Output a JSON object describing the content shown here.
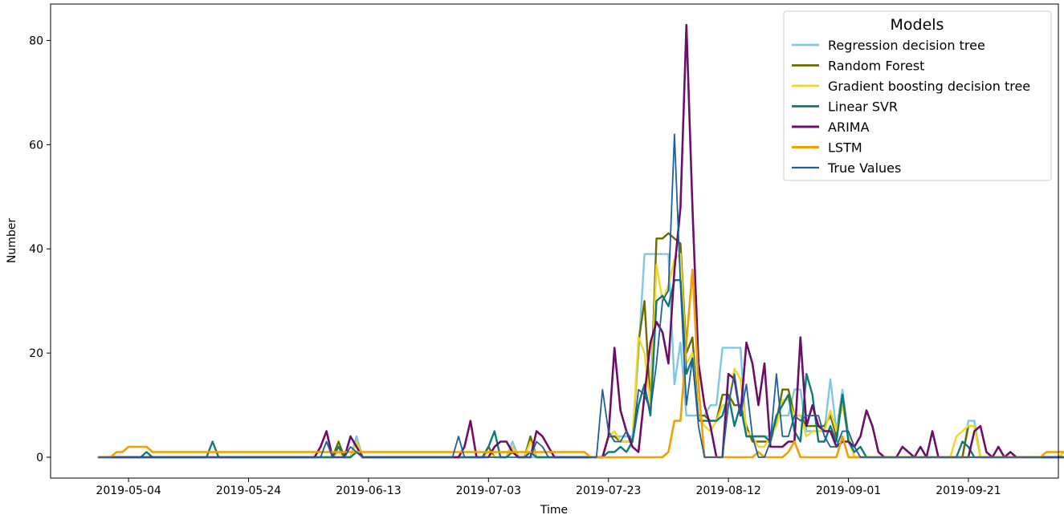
{
  "chart_data": {
    "type": "line",
    "xlabel": "Time",
    "ylabel": "Number",
    "x_start": "2019-04-29",
    "step_days": 1,
    "xlim": [
      "2019-04-21",
      "2019-10-06"
    ],
    "ylim": [
      -4,
      87
    ],
    "xticks": [
      "2019-05-04",
      "2019-05-24",
      "2019-06-13",
      "2019-07-03",
      "2019-07-23",
      "2019-08-12",
      "2019-09-01",
      "2019-09-21"
    ],
    "yticks": [
      0,
      20,
      40,
      60,
      80
    ],
    "grid": false,
    "legend": {
      "title": "Models",
      "position": "top-right"
    },
    "series": [
      {
        "name": "Regression decision tree",
        "color": "#7ec8e3",
        "width": 2.4,
        "values": [
          0,
          0,
          0,
          0,
          0,
          0,
          0,
          0,
          0,
          0,
          0,
          0,
          0,
          0,
          0,
          0,
          0,
          0,
          0,
          0,
          0,
          0,
          0,
          0,
          0,
          0,
          0,
          0,
          0,
          0,
          0,
          0,
          0,
          0,
          0,
          0,
          0,
          0,
          0,
          0,
          2,
          0,
          0,
          4,
          0,
          0,
          0,
          0,
          0,
          0,
          0,
          0,
          0,
          0,
          0,
          0,
          0,
          0,
          0,
          0,
          0,
          0,
          0,
          0,
          0,
          2,
          0,
          0,
          0,
          3,
          0,
          0,
          0,
          0,
          0,
          0,
          0,
          0,
          0,
          0,
          0,
          0,
          0,
          0,
          0,
          4,
          4,
          4,
          4,
          4,
          20,
          39,
          39,
          39,
          39,
          39,
          14,
          22,
          8,
          8,
          8,
          8,
          10,
          10,
          21,
          21,
          21,
          21,
          4,
          4,
          4,
          4,
          4,
          8,
          8,
          8,
          13,
          13,
          5,
          5,
          5,
          5,
          15,
          5,
          13,
          4,
          0,
          0,
          0,
          0,
          0,
          0,
          0,
          0,
          0,
          0,
          0,
          0,
          0,
          0,
          0,
          0,
          0,
          0,
          0,
          7,
          7,
          0,
          0,
          0,
          0,
          0,
          0,
          0,
          0,
          0,
          0,
          0,
          0,
          0,
          0,
          1,
          1
        ]
      },
      {
        "name": "Random Forest",
        "color": "#6b6b00",
        "width": 2.4,
        "values": [
          0,
          0,
          0,
          0,
          0,
          0,
          0,
          0,
          0,
          0,
          0,
          0,
          0,
          0,
          0,
          0,
          0,
          0,
          0,
          0,
          0,
          0,
          0,
          0,
          0,
          0,
          0,
          0,
          0,
          0,
          0,
          0,
          0,
          0,
          0,
          0,
          0,
          0,
          0,
          0,
          3,
          0,
          0,
          3,
          0,
          0,
          0,
          0,
          0,
          0,
          0,
          0,
          0,
          0,
          0,
          0,
          0,
          0,
          0,
          0,
          0,
          0,
          0,
          0,
          0,
          2,
          0,
          0,
          0,
          2,
          0,
          0,
          4,
          0,
          0,
          0,
          0,
          0,
          0,
          0,
          0,
          0,
          0,
          0,
          0,
          4,
          4,
          3,
          3,
          3,
          22,
          30,
          10,
          42,
          42,
          43,
          42,
          41,
          20,
          23,
          8,
          8,
          7,
          7,
          12,
          12,
          10,
          10,
          6,
          3,
          3,
          3,
          3,
          7,
          13,
          13,
          8,
          8,
          6,
          6,
          6,
          6,
          8,
          4,
          12,
          4,
          0,
          0,
          0,
          0,
          0,
          0,
          0,
          0,
          0,
          0,
          0,
          0,
          0,
          0,
          0,
          0,
          0,
          0,
          0,
          6,
          6,
          0,
          0,
          0,
          0,
          0,
          0,
          0,
          0,
          0,
          0,
          0,
          0,
          0,
          0,
          1,
          1
        ]
      },
      {
        "name": "Gradient boosting decision tree",
        "color": "#f2d722",
        "width": 2.4,
        "values": [
          0,
          0,
          0,
          0,
          0,
          0,
          0,
          0,
          0,
          0,
          0,
          0,
          0,
          0,
          0,
          0,
          0,
          0,
          0,
          0,
          0,
          0,
          0,
          0,
          0,
          0,
          0,
          0,
          0,
          0,
          0,
          0,
          0,
          0,
          0,
          0,
          0,
          0,
          0,
          0,
          1,
          0,
          0,
          3,
          0,
          0,
          0,
          0,
          0,
          0,
          0,
          0,
          0,
          0,
          0,
          0,
          0,
          0,
          0,
          0,
          0,
          0,
          0,
          0,
          0,
          1,
          0,
          0,
          0,
          2,
          0,
          0,
          3,
          0,
          0,
          0,
          0,
          0,
          0,
          0,
          0,
          0,
          0,
          0,
          0,
          4,
          5,
          3,
          3,
          3,
          23,
          20,
          10,
          37,
          30,
          33,
          38,
          39,
          18,
          20,
          8,
          6,
          5,
          7,
          10,
          10,
          17,
          15,
          5,
          4,
          2,
          2,
          4,
          6,
          11,
          11,
          8,
          8,
          4,
          5,
          5,
          5,
          9,
          5,
          10,
          4,
          0,
          0,
          0,
          0,
          0,
          0,
          0,
          0,
          0,
          0,
          0,
          0,
          0,
          0,
          0,
          0,
          0,
          4,
          5,
          6,
          6,
          0,
          0,
          0,
          0,
          0,
          0,
          0,
          0,
          0,
          0,
          0,
          0,
          0,
          0,
          1,
          1
        ]
      },
      {
        "name": "Linear SVR",
        "color": "#0f7a7a",
        "width": 2.4,
        "values": [
          0,
          0,
          0,
          0,
          0,
          0,
          0,
          0,
          1,
          0,
          0,
          0,
          0,
          0,
          0,
          0,
          0,
          0,
          0,
          3,
          0,
          0,
          0,
          0,
          0,
          0,
          0,
          0,
          0,
          0,
          0,
          0,
          0,
          0,
          0,
          0,
          0,
          0,
          0,
          0,
          2,
          0,
          0,
          1,
          0,
          0,
          0,
          0,
          0,
          0,
          0,
          0,
          0,
          0,
          0,
          0,
          0,
          0,
          0,
          0,
          0,
          0,
          0,
          0,
          0,
          2,
          5,
          0,
          0,
          1,
          0,
          0,
          1,
          0,
          0,
          0,
          0,
          0,
          0,
          0,
          0,
          0,
          0,
          0,
          0,
          1,
          1,
          2,
          1,
          3,
          10,
          14,
          8,
          30,
          31,
          29,
          34,
          34,
          16,
          19,
          7,
          7,
          7,
          7,
          8,
          12,
          6,
          10,
          4,
          4,
          4,
          4,
          3,
          8,
          10,
          12,
          5,
          3,
          16,
          12,
          3,
          3,
          6,
          3,
          12,
          3,
          1,
          2,
          0,
          0,
          0,
          0,
          0,
          0,
          0,
          0,
          0,
          0,
          0,
          0,
          0,
          0,
          0,
          0,
          3,
          2,
          0,
          0,
          0,
          0,
          0,
          0,
          0,
          0,
          0,
          0,
          0,
          0,
          0,
          0,
          0,
          0
        ]
      },
      {
        "name": "ARIMA",
        "color": "#6b0f6b",
        "width": 2.6,
        "values": [
          0,
          0,
          0,
          0,
          0,
          0,
          0,
          0,
          0,
          0,
          0,
          0,
          0,
          0,
          0,
          0,
          0,
          0,
          0,
          0,
          0,
          0,
          0,
          0,
          0,
          0,
          0,
          0,
          0,
          0,
          0,
          0,
          0,
          0,
          0,
          0,
          0,
          2,
          5,
          0,
          0,
          0,
          4,
          2,
          0,
          0,
          0,
          0,
          0,
          0,
          0,
          0,
          0,
          0,
          0,
          0,
          0,
          0,
          0,
          0,
          0,
          2,
          7,
          0,
          0,
          0,
          2,
          3,
          3,
          1,
          0,
          0,
          0,
          5,
          4,
          2,
          0,
          0,
          0,
          0,
          0,
          0,
          0,
          0,
          0,
          4,
          21,
          9,
          5,
          2,
          1,
          12,
          22,
          26,
          24,
          18,
          36,
          48,
          83,
          48,
          18,
          10,
          6,
          0,
          0,
          16,
          15,
          8,
          22,
          18,
          10,
          18,
          2,
          2,
          2,
          3,
          3,
          23,
          6,
          10,
          6,
          5,
          5,
          2,
          3,
          3,
          2,
          4,
          9,
          6,
          1,
          0,
          0,
          0,
          2,
          1,
          0,
          2,
          0,
          5,
          0,
          0,
          0,
          0,
          0,
          0,
          5,
          6,
          1,
          0,
          2,
          0,
          1,
          0,
          0,
          0,
          0,
          0,
          0,
          0,
          0,
          0,
          0
        ]
      },
      {
        "name": "LSTM",
        "color": "#f0a000",
        "width": 2.6,
        "values": [
          0,
          0,
          0,
          1,
          1,
          2,
          2,
          2,
          2,
          1,
          1,
          1,
          1,
          1,
          1,
          1,
          1,
          1,
          1,
          1,
          1,
          1,
          1,
          1,
          1,
          1,
          1,
          1,
          1,
          1,
          1,
          1,
          1,
          1,
          1,
          1,
          1,
          1,
          1,
          1,
          1,
          1,
          1,
          1,
          1,
          1,
          1,
          1,
          1,
          1,
          1,
          1,
          1,
          1,
          1,
          1,
          1,
          1,
          1,
          1,
          1,
          1,
          1,
          1,
          1,
          1,
          1,
          1,
          1,
          1,
          1,
          1,
          1,
          1,
          1,
          1,
          1,
          1,
          1,
          1,
          1,
          1,
          0,
          0,
          0,
          0,
          0,
          0,
          0,
          0,
          0,
          0,
          0,
          0,
          0,
          1,
          7,
          7,
          22,
          36,
          14,
          0,
          0,
          0,
          0,
          0,
          0,
          0,
          0,
          0,
          1,
          0,
          0,
          0,
          0,
          1,
          3,
          0,
          0,
          0,
          0,
          0,
          0,
          0,
          4,
          0,
          0,
          0,
          0,
          0,
          0,
          0,
          0,
          0,
          0,
          0,
          0,
          0,
          0,
          0,
          0,
          0,
          0,
          0,
          0,
          0,
          0,
          0,
          0,
          0,
          0,
          0,
          0,
          0,
          0,
          0,
          0,
          0,
          1,
          1,
          1,
          1,
          1,
          1,
          1,
          1
        ]
      },
      {
        "name": "True Values",
        "color": "#1f5fa0",
        "width": 1.8,
        "values": [
          0,
          0,
          0,
          0,
          0,
          0,
          0,
          0,
          0,
          0,
          0,
          0,
          0,
          0,
          0,
          0,
          0,
          0,
          0,
          0,
          0,
          0,
          0,
          0,
          0,
          0,
          0,
          0,
          0,
          0,
          0,
          0,
          0,
          0,
          0,
          0,
          0,
          0,
          3,
          0,
          0,
          0,
          2,
          1,
          0,
          0,
          0,
          0,
          0,
          0,
          0,
          0,
          0,
          0,
          0,
          0,
          0,
          0,
          0,
          0,
          4,
          0,
          0,
          0,
          0,
          0,
          0,
          0,
          0,
          0,
          0,
          0,
          0,
          3,
          2,
          0,
          0,
          0,
          0,
          0,
          0,
          0,
          0,
          0,
          13,
          5,
          3,
          3,
          5,
          3,
          13,
          12,
          9,
          18,
          30,
          32,
          62,
          33,
          10,
          19,
          6,
          0,
          0,
          0,
          0,
          10,
          16,
          8,
          14,
          4,
          0,
          0,
          3,
          16,
          4,
          4,
          8,
          7,
          8,
          8,
          8,
          4,
          2,
          2,
          5,
          5,
          2,
          0,
          0,
          0,
          0,
          0,
          0,
          0,
          0,
          0,
          0,
          0,
          0,
          0,
          0,
          0,
          0,
          0,
          0,
          0,
          0,
          0,
          0,
          0,
          0,
          0,
          0,
          0,
          0,
          0,
          0,
          0,
          0,
          0,
          0,
          0,
          0
        ]
      }
    ]
  }
}
